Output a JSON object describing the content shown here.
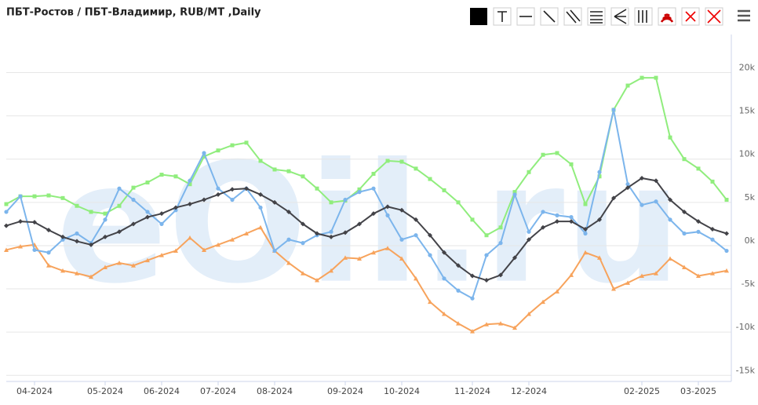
{
  "chart_data": {
    "type": "line",
    "title": "ПБТ-Ростов / ПБТ-Владимир, RUB/MT ,Daily",
    "watermark": "eOil.ru",
    "categories": [
      null,
      null,
      "04-2024",
      null,
      null,
      null,
      null,
      "05-2024",
      null,
      null,
      null,
      "06-2024",
      null,
      null,
      null,
      "07-2024",
      null,
      null,
      null,
      "08-2024",
      null,
      null,
      null,
      null,
      "09-2024",
      null,
      null,
      null,
      "10-2024",
      null,
      null,
      null,
      null,
      "11-2024",
      null,
      null,
      null,
      "12-2024",
      null,
      null,
      null,
      null,
      null,
      null,
      null,
      "02-2025",
      null,
      null,
      null,
      "03-2025",
      null,
      null
    ],
    "series": [
      {
        "color": "#90ed7d",
        "marker": "square",
        "values": [
          4800,
          5700,
          5700,
          5800,
          5500,
          4600,
          3900,
          3700,
          4600,
          6700,
          7300,
          8200,
          8000,
          7100,
          10300,
          11000,
          11600,
          11900,
          9800,
          8800,
          8600,
          8000,
          6600,
          5000,
          5200,
          6500,
          8300,
          9800,
          9700,
          8900,
          7700,
          6400,
          5000,
          3000,
          1200,
          2100,
          6200,
          8500,
          10500,
          10700,
          9400,
          4800,
          8000,
          15700,
          18500,
          19400,
          19400,
          12500,
          10000,
          8900,
          7400,
          5300
        ]
      },
      {
        "color": "#f7a35c",
        "marker": "triangle",
        "values": [
          -500,
          -100,
          100,
          -2300,
          -2900,
          -3200,
          -3600,
          -2500,
          -2000,
          -2300,
          -1700,
          -1100,
          -600,
          900,
          -500,
          100,
          700,
          1400,
          2100,
          -600,
          -2000,
          -3200,
          -4000,
          -2900,
          -1400,
          -1500,
          -800,
          -300,
          -1500,
          -3800,
          -6500,
          -7900,
          -9000,
          -9900,
          -9100,
          -9000,
          -9500,
          -7900,
          -6500,
          -5300,
          -3400,
          -800,
          -1400,
          -5000,
          -4300,
          -3500,
          -3200,
          -1500,
          -2500,
          -3500,
          -3200,
          -2900
        ]
      },
      {
        "color": "#7cb5ec",
        "marker": "circle",
        "values": [
          3900,
          5700,
          -500,
          -800,
          700,
          1400,
          300,
          3000,
          6600,
          5300,
          3900,
          2500,
          4100,
          7500,
          10700,
          6600,
          5300,
          6600,
          4400,
          -600,
          700,
          300,
          1200,
          1600,
          5300,
          6200,
          6600,
          3500,
          700,
          1200,
          -1100,
          -3800,
          -5200,
          -6100,
          -1100,
          300,
          5900,
          1600,
          3900,
          3500,
          3300,
          1400,
          8500,
          15700,
          7100,
          4700,
          5100,
          3000,
          1400,
          1600,
          700,
          -600
        ]
      },
      {
        "color": "#434348",
        "marker": "diamond",
        "values": [
          2300,
          2800,
          2700,
          1800,
          1000,
          500,
          100,
          1000,
          1600,
          2500,
          3300,
          3700,
          4400,
          4800,
          5300,
          5900,
          6500,
          6600,
          5900,
          5000,
          3900,
          2500,
          1400,
          1000,
          1500,
          2500,
          3700,
          4500,
          4100,
          3000,
          1200,
          -800,
          -2300,
          -3500,
          -4000,
          -3400,
          -1400,
          700,
          2100,
          2800,
          2800,
          1900,
          3000,
          5500,
          6700,
          7800,
          7500,
          5300,
          3900,
          2800,
          1900,
          1400
        ]
      }
    ],
    "ylim": [
      -15700,
      24400
    ],
    "yticks": [
      {
        "value": -15000,
        "label": "-15k"
      },
      {
        "value": -10000,
        "label": "-10k"
      },
      {
        "value": -5000,
        "label": "-5k"
      },
      {
        "value": 0,
        "label": "0k"
      },
      {
        "value": 5000,
        "label": "5k"
      },
      {
        "value": 10000,
        "label": "10k"
      },
      {
        "value": 15000,
        "label": "15k"
      },
      {
        "value": 20000,
        "label": "20k"
      }
    ],
    "grid": true
  }
}
